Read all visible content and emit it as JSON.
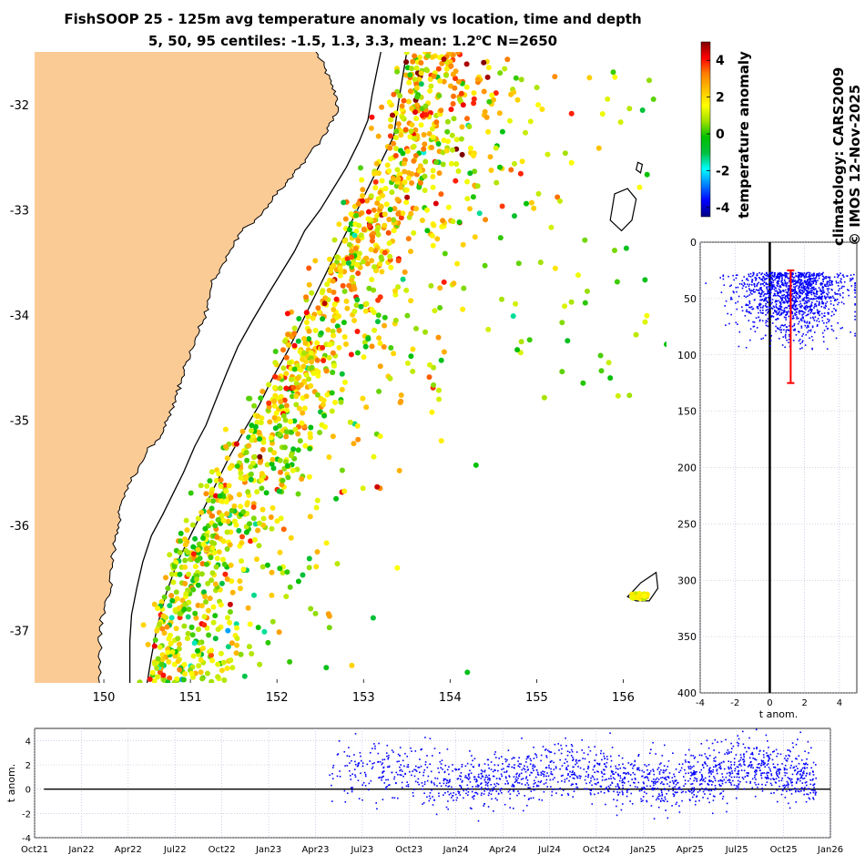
{
  "figure": {
    "title_line1": "FishSOOP 25 - 125m avg temperature anomaly vs location, time and depth",
    "title_line2_prefix": "5, 50, 95 centiles: -1.5, 1.3, 3.3, mean: 1.2",
    "title_line2_unit_sup": "o",
    "title_line2_suffix": "C N=2650",
    "climatology_label": "climatology: CARS2009",
    "copyright_label": "© IMOS 12-Nov-2025"
  },
  "colors": {
    "land": "#fbcb96",
    "ocean": "#ffffff",
    "depth_points": "#0000ff",
    "mean_bar": "#ff0000",
    "contour": "#000000",
    "grid": "#b0b0d8"
  },
  "colorbar": {
    "label": "temperature anomaly",
    "range": [
      -4.5,
      5
    ],
    "ticks": [
      {
        "v": 4,
        "label": "4"
      },
      {
        "v": 2,
        "label": "2"
      },
      {
        "v": 0,
        "label": "0"
      },
      {
        "v": -2,
        "label": "-2"
      },
      {
        "v": -4,
        "label": "-4"
      }
    ],
    "stops": [
      "#000080",
      "#0000ff",
      "#0080ff",
      "#00ffff",
      "#00c040",
      "#00c000",
      "#a0e000",
      "#ffff00",
      "#ffc000",
      "#ff8000",
      "#ff0000",
      "#800000"
    ]
  },
  "chart_data": [
    {
      "type": "scatter",
      "name": "map",
      "title": "FishSOOP 25 - 125m avg temperature anomaly vs location, time and depth",
      "xlabel": "",
      "ylabel": "",
      "xlim": [
        149.2,
        156.5
      ],
      "ylim": [
        -37.5,
        -31.5
      ],
      "xticks": [
        {
          "v": 150,
          "label": "150"
        },
        {
          "v": 151,
          "label": "151"
        },
        {
          "v": 152,
          "label": "152"
        },
        {
          "v": 153,
          "label": "153"
        },
        {
          "v": 154,
          "label": "154"
        },
        {
          "v": 155,
          "label": "155"
        },
        {
          "v": 156,
          "label": "156"
        }
      ],
      "yticks": [
        {
          "v": -32,
          "label": "-32"
        },
        {
          "v": -33,
          "label": "-33"
        },
        {
          "v": -34,
          "label": "-34"
        },
        {
          "v": -35,
          "label": "-35"
        },
        {
          "v": -36,
          "label": "-36"
        },
        {
          "v": -37,
          "label": "-37"
        }
      ],
      "coastline": [
        [
          152.45,
          -31.5
        ],
        [
          152.55,
          -31.65
        ],
        [
          152.62,
          -31.8
        ],
        [
          152.7,
          -31.95
        ],
        [
          152.68,
          -32.1
        ],
        [
          152.6,
          -32.2
        ],
        [
          152.5,
          -32.35
        ],
        [
          152.35,
          -32.5
        ],
        [
          152.2,
          -32.65
        ],
        [
          152.1,
          -32.75
        ],
        [
          151.95,
          -32.9
        ],
        [
          151.82,
          -33.05
        ],
        [
          151.6,
          -33.2
        ],
        [
          151.5,
          -33.35
        ],
        [
          151.35,
          -33.55
        ],
        [
          151.25,
          -33.7
        ],
        [
          151.2,
          -33.9
        ],
        [
          151.15,
          -34.05
        ],
        [
          151.05,
          -34.25
        ],
        [
          150.95,
          -34.45
        ],
        [
          150.9,
          -34.6
        ],
        [
          150.85,
          -34.75
        ],
        [
          150.78,
          -34.9
        ],
        [
          150.72,
          -35.05
        ],
        [
          150.6,
          -35.2
        ],
        [
          150.5,
          -35.3
        ],
        [
          150.4,
          -35.45
        ],
        [
          150.3,
          -35.6
        ],
        [
          150.22,
          -35.75
        ],
        [
          150.18,
          -35.9
        ],
        [
          150.15,
          -36.05
        ],
        [
          150.12,
          -36.2
        ],
        [
          150.1,
          -36.4
        ],
        [
          150.08,
          -36.6
        ],
        [
          150.0,
          -36.8
        ],
        [
          149.95,
          -37.0
        ],
        [
          149.95,
          -37.2
        ],
        [
          149.95,
          -37.5
        ]
      ],
      "contour_200m": [
        [
          153.2,
          -31.5
        ],
        [
          153.15,
          -31.7
        ],
        [
          153.1,
          -31.9
        ],
        [
          153.05,
          -32.15
        ],
        [
          152.95,
          -32.35
        ],
        [
          152.8,
          -32.6
        ],
        [
          152.65,
          -32.8
        ],
        [
          152.5,
          -33.0
        ],
        [
          152.32,
          -33.2
        ],
        [
          152.2,
          -33.4
        ],
        [
          152.05,
          -33.6
        ],
        [
          151.9,
          -33.8
        ],
        [
          151.72,
          -34.05
        ],
        [
          151.55,
          -34.3
        ],
        [
          151.42,
          -34.55
        ],
        [
          151.3,
          -34.8
        ],
        [
          151.18,
          -35.05
        ],
        [
          151.05,
          -35.25
        ],
        [
          150.92,
          -35.5
        ],
        [
          150.8,
          -35.7
        ],
        [
          150.68,
          -35.9
        ],
        [
          150.55,
          -36.1
        ],
        [
          150.45,
          -36.35
        ],
        [
          150.38,
          -36.6
        ],
        [
          150.32,
          -36.85
        ],
        [
          150.3,
          -37.1
        ],
        [
          150.3,
          -37.5
        ]
      ],
      "contour_1000m": [
        [
          153.5,
          -31.5
        ],
        [
          153.45,
          -31.75
        ],
        [
          153.4,
          -32.0
        ],
        [
          153.35,
          -32.3
        ],
        [
          153.2,
          -32.55
        ],
        [
          153.05,
          -32.8
        ],
        [
          152.9,
          -33.05
        ],
        [
          152.75,
          -33.3
        ],
        [
          152.6,
          -33.55
        ],
        [
          152.45,
          -33.8
        ],
        [
          152.3,
          -34.05
        ],
        [
          152.12,
          -34.35
        ],
        [
          151.95,
          -34.6
        ],
        [
          151.8,
          -34.85
        ],
        [
          151.62,
          -35.1
        ],
        [
          151.45,
          -35.35
        ],
        [
          151.3,
          -35.6
        ],
        [
          151.15,
          -35.85
        ],
        [
          151.0,
          -36.1
        ],
        [
          150.85,
          -36.35
        ],
        [
          150.72,
          -36.65
        ],
        [
          150.62,
          -36.95
        ],
        [
          150.55,
          -37.25
        ],
        [
          150.5,
          -37.5
        ]
      ],
      "islands": [
        [
          [
            155.9,
            -32.85
          ],
          [
            156.05,
            -32.8
          ],
          [
            156.15,
            -32.9
          ],
          [
            156.1,
            -33.1
          ],
          [
            155.98,
            -33.2
          ],
          [
            155.85,
            -33.1
          ],
          [
            155.88,
            -32.95
          ]
        ],
        [
          [
            156.2,
            -36.55
          ],
          [
            156.38,
            -36.45
          ],
          [
            156.4,
            -36.6
          ],
          [
            156.3,
            -36.72
          ],
          [
            156.15,
            -36.72
          ],
          [
            156.05,
            -36.68
          ],
          [
            156.12,
            -36.62
          ]
        ],
        [
          [
            156.17,
            -32.55
          ],
          [
            156.22,
            -32.57
          ],
          [
            156.2,
            -32.65
          ],
          [
            156.15,
            -32.62
          ]
        ]
      ],
      "points_note": "~2650 profile locations, colour = temperature anomaly"
    },
    {
      "type": "scatter",
      "name": "depth-profile",
      "xlabel": "t anom.",
      "ylabel": "",
      "xlim": [
        -4,
        5
      ],
      "ylim": [
        400,
        0
      ],
      "xticks": [
        {
          "v": -4,
          "label": "-4"
        },
        {
          "v": -2,
          "label": "-2"
        },
        {
          "v": 0,
          "label": "0"
        },
        {
          "v": 2,
          "label": "2"
        },
        {
          "v": 4,
          "label": "4"
        }
      ],
      "yticks": [
        {
          "v": 0,
          "label": "0"
        },
        {
          "v": 50,
          "label": "50"
        },
        {
          "v": 100,
          "label": "100"
        },
        {
          "v": 150,
          "label": "150"
        },
        {
          "v": 200,
          "label": "200"
        },
        {
          "v": 250,
          "label": "250"
        },
        {
          "v": 300,
          "label": "300"
        },
        {
          "v": 350,
          "label": "350"
        },
        {
          "v": 400,
          "label": "400"
        }
      ],
      "mean_anomaly": 1.2,
      "depth_range": [
        25,
        125
      ],
      "points_note": "anomaly vs depth, depths 25–125 m"
    },
    {
      "type": "scatter",
      "name": "time-series",
      "xlabel": "",
      "ylabel": "t anom.",
      "ylim": [
        -4,
        5
      ],
      "xticks": [
        {
          "v": 0,
          "label": "Oct21"
        },
        {
          "v": 1,
          "label": "Jan22"
        },
        {
          "v": 2,
          "label": "Apr22"
        },
        {
          "v": 3,
          "label": "Jul22"
        },
        {
          "v": 4,
          "label": "Oct22"
        },
        {
          "v": 5,
          "label": "Jan23"
        },
        {
          "v": 6,
          "label": "Apr23"
        },
        {
          "v": 7,
          "label": "Jul23"
        },
        {
          "v": 8,
          "label": "Oct23"
        },
        {
          "v": 9,
          "label": "Jan24"
        },
        {
          "v": 10,
          "label": "Apr24"
        },
        {
          "v": 11,
          "label": "Jul24"
        },
        {
          "v": 12,
          "label": "Oct24"
        },
        {
          "v": 13,
          "label": "Jan25"
        },
        {
          "v": 14,
          "label": "Apr25"
        },
        {
          "v": 15,
          "label": "Jul25"
        },
        {
          "v": 16,
          "label": "Oct25"
        },
        {
          "v": 17,
          "label": "Jan26"
        }
      ],
      "yticks": [
        {
          "v": 4,
          "label": "4"
        },
        {
          "v": 2,
          "label": "2"
        },
        {
          "v": 0,
          "label": "0"
        },
        {
          "v": -2,
          "label": "-2"
        },
        {
          "v": -4,
          "label": "-4"
        }
      ],
      "data_start_quarter": 6.3,
      "data_end_quarter": 16.7,
      "points_note": "anomaly vs time (quarter index), data from ~May 2023 to Nov 2025"
    }
  ]
}
